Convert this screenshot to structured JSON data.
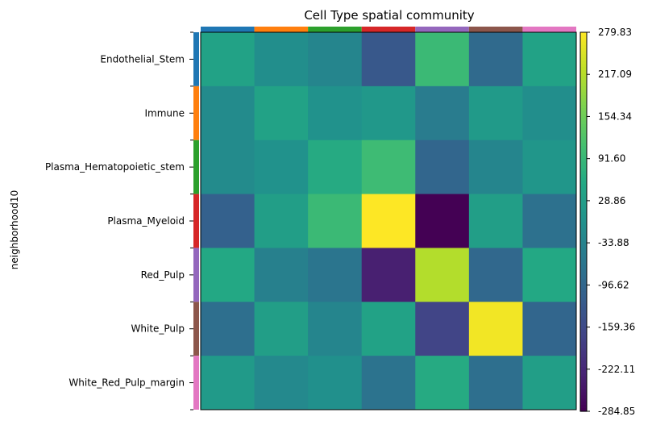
{
  "chart_data": {
    "type": "heatmap",
    "title": "Cell Type spatial community",
    "ylabel": "neighborhood10",
    "xlabel": "",
    "rows": [
      "Endothelial_Stem",
      "Immune",
      "Plasma_Hematopoietic_stem",
      "Plasma_Myeloid",
      "Red_Pulp",
      "White_Pulp",
      "White_Red_Pulp_margin"
    ],
    "group_colors": [
      "#1f77b4",
      "#ff7f0e",
      "#2ca02c",
      "#d62728",
      "#9467bd",
      "#8c564b",
      "#e377c2"
    ],
    "values": [
      [
        40,
        -10,
        -30,
        -130,
        95,
        -90,
        40
      ],
      [
        -15,
        40,
        0,
        15,
        -50,
        20,
        -10
      ],
      [
        -15,
        0,
        60,
        100,
        -100,
        -30,
        10
      ],
      [
        -110,
        30,
        95,
        280,
        -285,
        30,
        -75
      ],
      [
        55,
        -40,
        -65,
        -235,
        215,
        -95,
        55
      ],
      [
        -80,
        30,
        -30,
        40,
        -170,
        270,
        -100
      ],
      [
        20,
        -20,
        -5,
        -70,
        60,
        -80,
        30
      ]
    ],
    "colormap": "viridis",
    "vmin": -284.85,
    "vmax": 279.83,
    "colorbar_ticks": [
      "279.83",
      "217.09",
      "154.34",
      "91.60",
      "28.86",
      "-33.88",
      "-96.62",
      "-159.36",
      "-222.11",
      "-284.85"
    ],
    "grid": false
  }
}
